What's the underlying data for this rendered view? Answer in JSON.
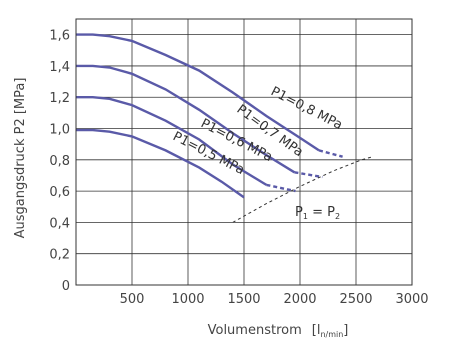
{
  "chart_data": {
    "type": "line",
    "xlabel": "Volumenstrom",
    "xunit_main": "[l",
    "xunit_sub": "n/min",
    "xunit_close": "]",
    "ylabel": "Ausgangsdruck  P2  [MPa]",
    "xlim": [
      0,
      3000
    ],
    "ylim": [
      0,
      1.7
    ],
    "x_ticks": [
      "0",
      "500",
      "1000",
      "1500",
      "2000",
      "2500",
      "3000"
    ],
    "x_tick_values": [
      0,
      500,
      1000,
      1500,
      2000,
      2500,
      3000
    ],
    "y_ticks": [
      "0,2",
      "0,4",
      "0,6",
      "0,8",
      "1,0",
      "1,2",
      "1,4",
      "1,6"
    ],
    "y_tick_values": [
      0.2,
      0.4,
      0.6,
      0.8,
      1.0,
      1.2,
      1.4,
      1.6
    ],
    "grid": true,
    "series": [
      {
        "name": "P1=0,8 MPa",
        "x": [
          0,
          150,
          300,
          500,
          800,
          1100,
          1400,
          1700,
          2000,
          2170
        ],
        "y": [
          1.6,
          1.6,
          1.59,
          1.56,
          1.47,
          1.37,
          1.23,
          1.08,
          0.94,
          0.86
        ],
        "dashed_x": [
          2170,
          2380
        ],
        "dashed_y": [
          0.86,
          0.82
        ]
      },
      {
        "name": "P1=0,7 MPa",
        "x": [
          0,
          150,
          300,
          500,
          800,
          1100,
          1400,
          1700,
          1950
        ],
        "y": [
          1.4,
          1.4,
          1.39,
          1.35,
          1.25,
          1.12,
          0.97,
          0.83,
          0.72
        ],
        "dashed_x": [
          1950,
          2200
        ],
        "dashed_y": [
          0.72,
          0.69
        ]
      },
      {
        "name": "P1=0,6 MPa",
        "x": [
          0,
          150,
          300,
          500,
          800,
          1100,
          1400,
          1700
        ],
        "y": [
          1.2,
          1.2,
          1.19,
          1.15,
          1.05,
          0.93,
          0.77,
          0.64
        ],
        "dashed_x": [
          1700,
          1960
        ],
        "dashed_y": [
          0.64,
          0.6
        ]
      },
      {
        "name": "P1=0,5 MPa",
        "x": [
          0,
          150,
          300,
          500,
          800,
          1100,
          1300,
          1500
        ],
        "y": [
          0.99,
          0.99,
          0.98,
          0.95,
          0.86,
          0.75,
          0.66,
          0.56
        ],
        "dashed_x": [],
        "dashed_y": []
      }
    ],
    "curve_labels": [
      "P1=0,8 MPa",
      "P1=0,7 MPa",
      "P1=0,6 MPa",
      "P1=0,5 MPa"
    ],
    "limit_line": {
      "label_main": "P",
      "label_sub1": "1",
      "label_eq": " = P",
      "label_sub2": "2",
      "x": [
        1400,
        1700,
        2000,
        2300,
        2550,
        2650
      ],
      "y": [
        0.4,
        0.52,
        0.63,
        0.73,
        0.8,
        0.82
      ]
    },
    "colors": {
      "curve": "#5a5aa8",
      "grid": "#333333",
      "text": "#444444"
    }
  }
}
